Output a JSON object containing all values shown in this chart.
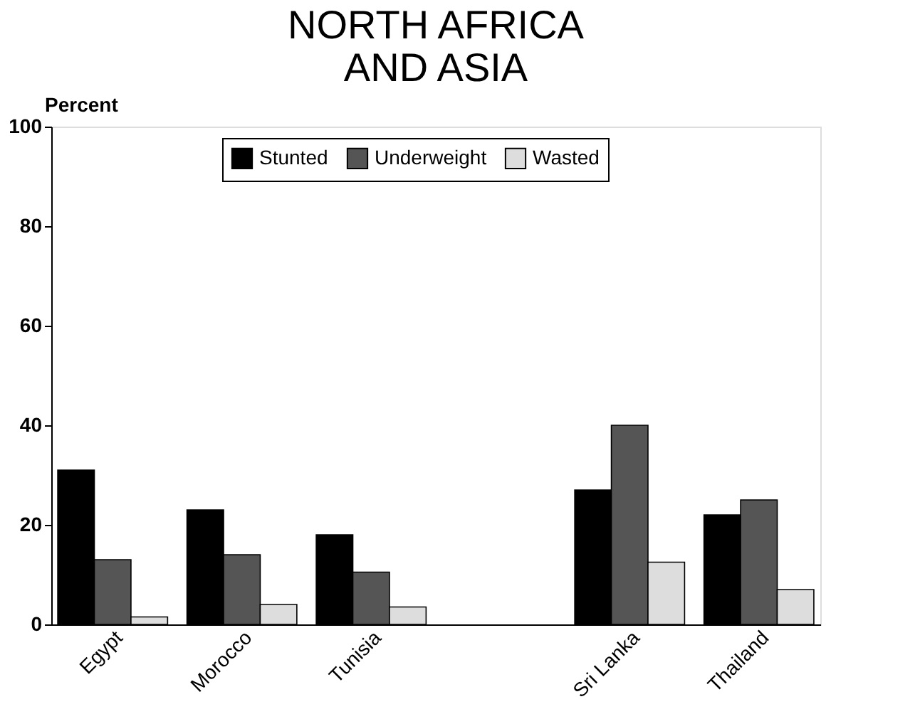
{
  "chart_data": {
    "type": "bar",
    "title": "NORTH AFRICA\nAND ASIA",
    "ylabel": "Percent",
    "categories": [
      "Egypt",
      "Morocco",
      "Tunisia",
      null,
      "Sri Lanka",
      "Thailand"
    ],
    "series": [
      {
        "name": "Stunted",
        "color": "#000000",
        "values": [
          31,
          23,
          18,
          null,
          27,
          22
        ]
      },
      {
        "name": "Underweight",
        "color": "#555555",
        "values": [
          13,
          14,
          10.5,
          null,
          40,
          25
        ]
      },
      {
        "name": "Wasted",
        "color": "#dddddd",
        "values": [
          1.5,
          4,
          3.5,
          null,
          12.5,
          7
        ]
      }
    ],
    "ylim": [
      0,
      100
    ],
    "yticks": [
      0,
      20,
      40,
      60,
      80,
      100
    ],
    "grid": false,
    "legend": "top"
  }
}
